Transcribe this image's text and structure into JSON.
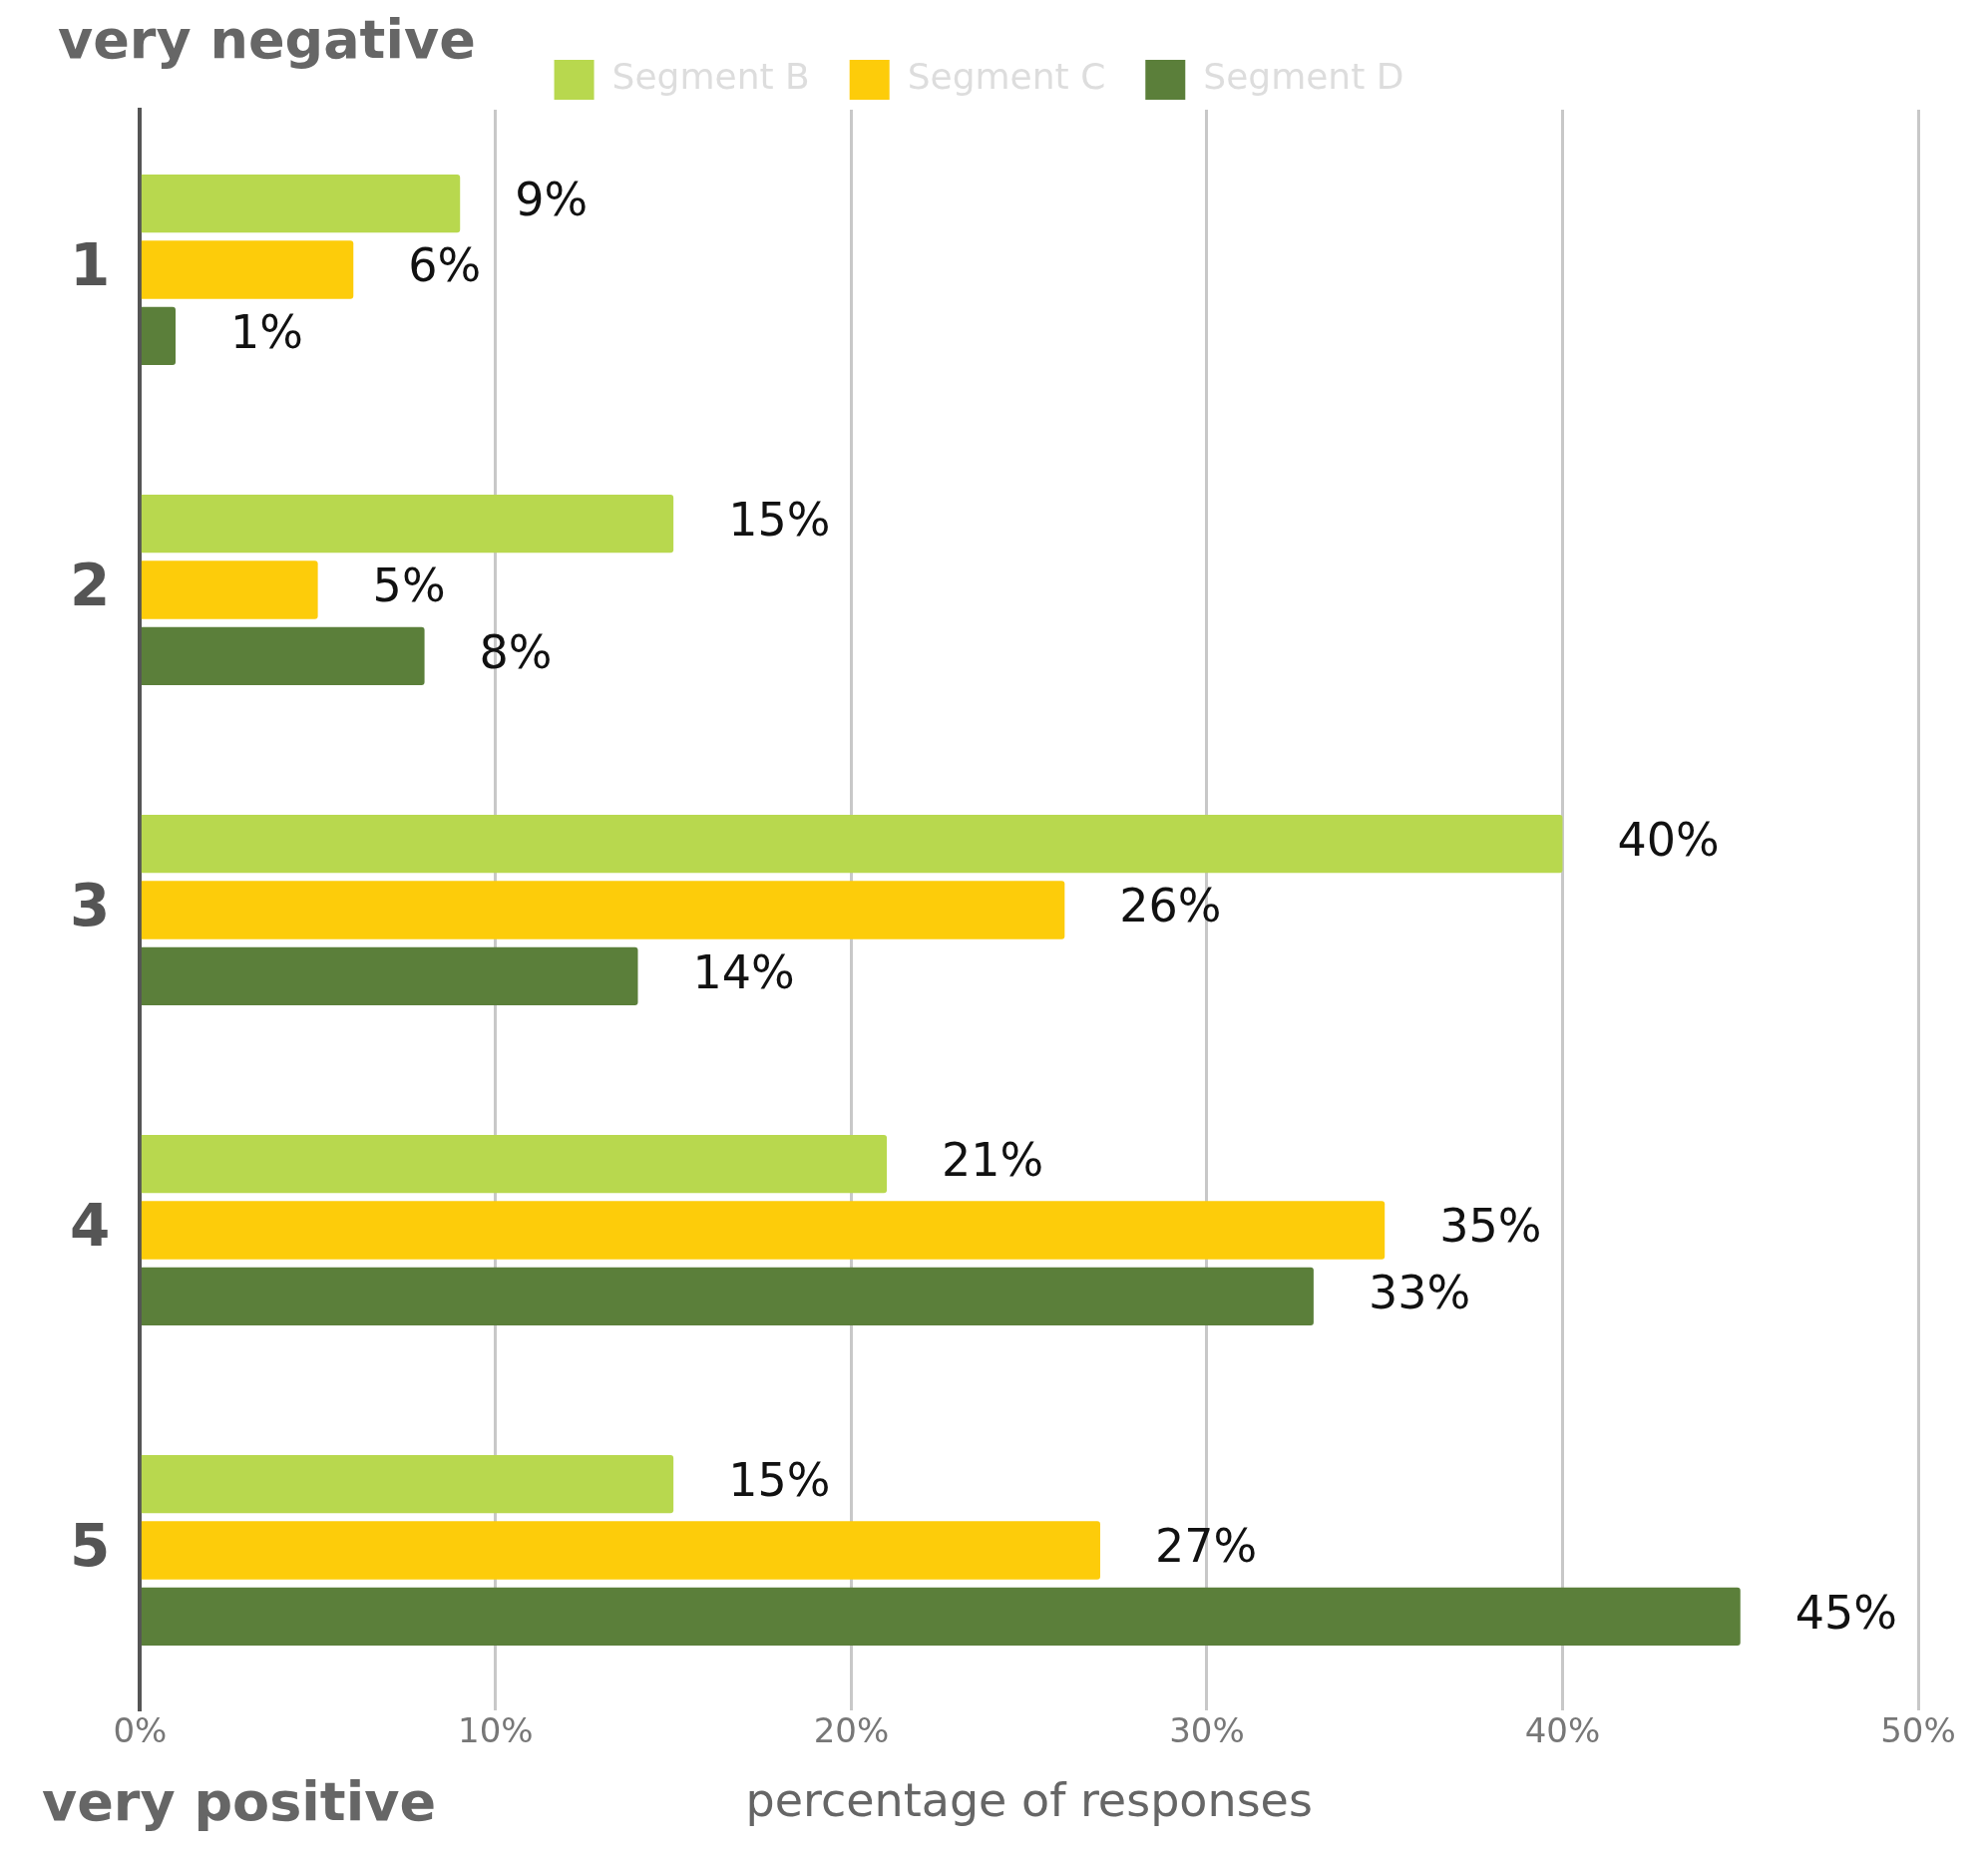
{
  "chart_data": {
    "type": "bar",
    "orientation": "horizontal",
    "xlabel": "percentage of responses",
    "categories": [
      "1",
      "2",
      "3",
      "4",
      "5"
    ],
    "series": [
      {
        "name": "Segment B",
        "color": "#b8d84e",
        "values": [
          9,
          15,
          40,
          21,
          15
        ],
        "value_labels": [
          "9%",
          "15%",
          "40%",
          "21%",
          "15%"
        ]
      },
      {
        "name": "Segment C",
        "color": "#fdcc0a",
        "values": [
          6,
          5,
          26,
          35,
          27
        ],
        "value_labels": [
          "6%",
          "5%",
          "26%",
          "35%",
          "27%"
        ]
      },
      {
        "name": "Segment D",
        "color": "#5b7f3a",
        "values": [
          1,
          8,
          14,
          33,
          45
        ],
        "value_labels": [
          "1%",
          "8%",
          "14%",
          "33%",
          "45%"
        ]
      }
    ],
    "xlim": [
      0,
      50
    ],
    "xticks": [
      {
        "value": 0,
        "label": "0%"
      },
      {
        "value": 10,
        "label": "10%"
      },
      {
        "value": 20,
        "label": "20%"
      },
      {
        "value": 30,
        "label": "30%"
      },
      {
        "value": 40,
        "label": "40%"
      },
      {
        "value": 50,
        "label": "50%"
      }
    ],
    "grid": "x",
    "legend": "top",
    "annotations": [
      "very negative",
      "very positive"
    ]
  }
}
